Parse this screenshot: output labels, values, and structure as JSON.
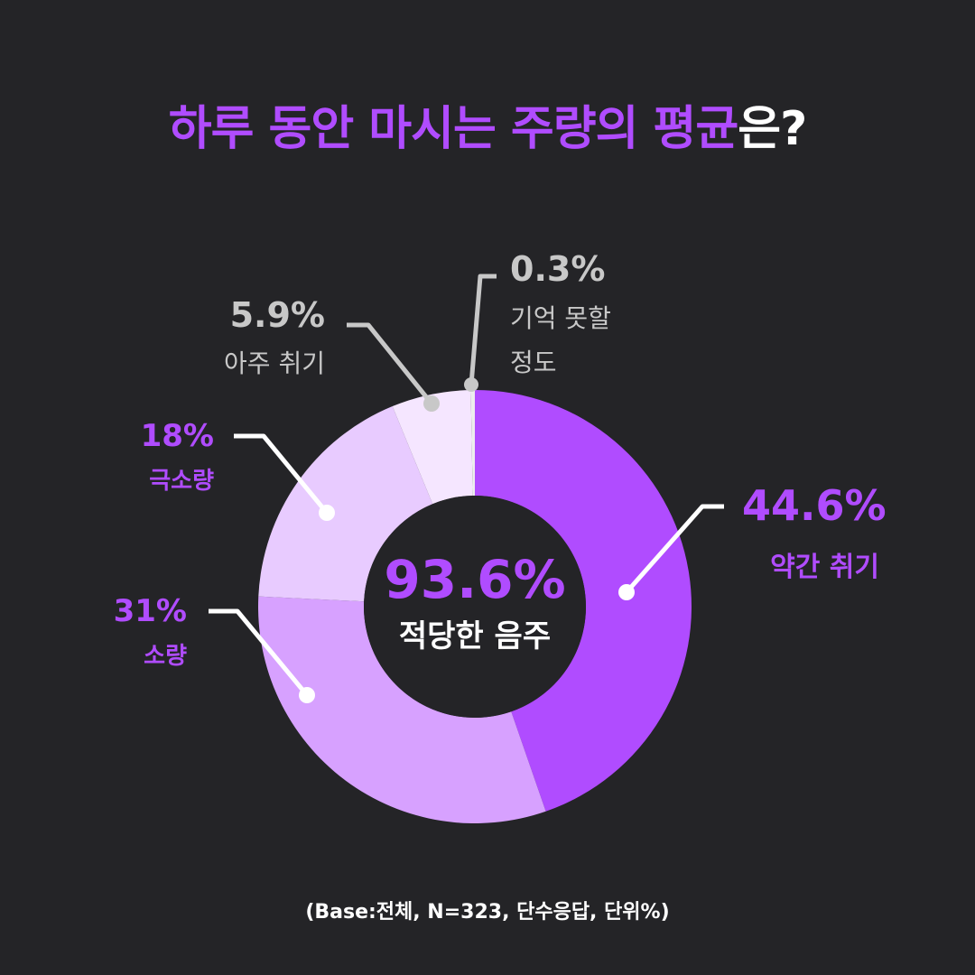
{
  "title": {
    "highlight": "하루 동안 마시는 주량의 평균",
    "rest": "은?"
  },
  "center": {
    "value": "93.6%",
    "label": "적당한 음주"
  },
  "footnote": "(Base:전체, N=323, 단수응답, 단위%)",
  "colors": {
    "background": "#242427",
    "accent": "#b04cff",
    "gray": "#c8c8c8",
    "white": "#ffffff"
  },
  "chart_data": {
    "type": "pie",
    "donut": true,
    "unit": "%",
    "categories": [
      "약간 취기",
      "소량",
      "극소량",
      "아주 취기",
      "기억 못할 정도"
    ],
    "values": [
      44.6,
      31,
      18,
      5.9,
      0.3
    ],
    "colors": [
      "#b04cff",
      "#d7a1ff",
      "#e8cbff",
      "#f5e6ff",
      "#ededed"
    ],
    "labels": [
      {
        "value": "44.6%",
        "name": "약간 취기"
      },
      {
        "value": "31%",
        "name": "소량"
      },
      {
        "value": "18%",
        "name": "극소량"
      },
      {
        "value": "5.9%",
        "name": "아주 취기"
      },
      {
        "value": "0.3%",
        "name": "기억 못할 정도",
        "lines": [
          "기억 못할",
          "정도"
        ]
      }
    ]
  }
}
